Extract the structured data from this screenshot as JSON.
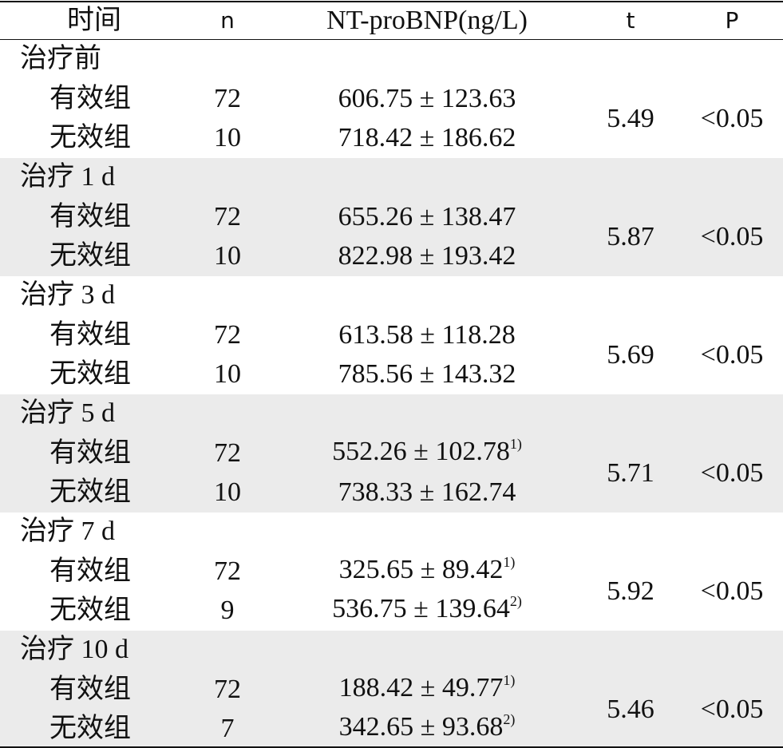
{
  "header": [
    "时间",
    "n",
    "NT-proBNP(ng/L)",
    "t",
    "P"
  ],
  "groups": [
    {
      "label": "治疗前",
      "t": "5.49",
      "p": "<0.05",
      "rows": [
        {
          "group": "有效组",
          "n": "72",
          "value": "606.75 ± 123.63"
        },
        {
          "group": "无效组",
          "n": "10",
          "value": "718.42 ± 186.62"
        }
      ]
    },
    {
      "label": "治疗 1 d",
      "t": "5.87",
      "p": "<0.05",
      "rows": [
        {
          "group": "有效组",
          "n": "72",
          "value": "655.26 ± 138.47"
        },
        {
          "group": "无效组",
          "n": "10",
          "value": "822.98 ± 193.42"
        }
      ]
    },
    {
      "label": "治疗 3 d",
      "t": "5.69",
      "p": "<0.05",
      "rows": [
        {
          "group": "有效组",
          "n": "72",
          "value": "613.58 ± 118.28"
        },
        {
          "group": "无效组",
          "n": "10",
          "value": "785.56 ± 143.32"
        }
      ]
    },
    {
      "label": "治疗 5 d",
      "t": "5.71",
      "p": "<0.05",
      "rows": [
        {
          "group": "有效组",
          "n": "72",
          "value": "552.26 ± 102.78",
          "note": "1)"
        },
        {
          "group": "无效组",
          "n": "10",
          "value": "738.33 ± 162.74"
        }
      ]
    },
    {
      "label": "治疗 7 d",
      "t": "5.92",
      "p": "<0.05",
      "rows": [
        {
          "group": "有效组",
          "n": "72",
          "value": "325.65 ± 89.42",
          "note": "1)"
        },
        {
          "group": "无效组",
          "n": "9",
          "value": "536.75 ± 139.64",
          "note": "2)"
        }
      ]
    },
    {
      "label": "治疗 10 d",
      "t": "5.46",
      "p": "<0.05",
      "rows": [
        {
          "group": "有效组",
          "n": "72",
          "value": "188.42 ± 49.77",
          "note": "1)"
        },
        {
          "group": "无效组",
          "n": "7",
          "value": "342.65 ± 93.68",
          "note": "2)"
        }
      ]
    }
  ]
}
